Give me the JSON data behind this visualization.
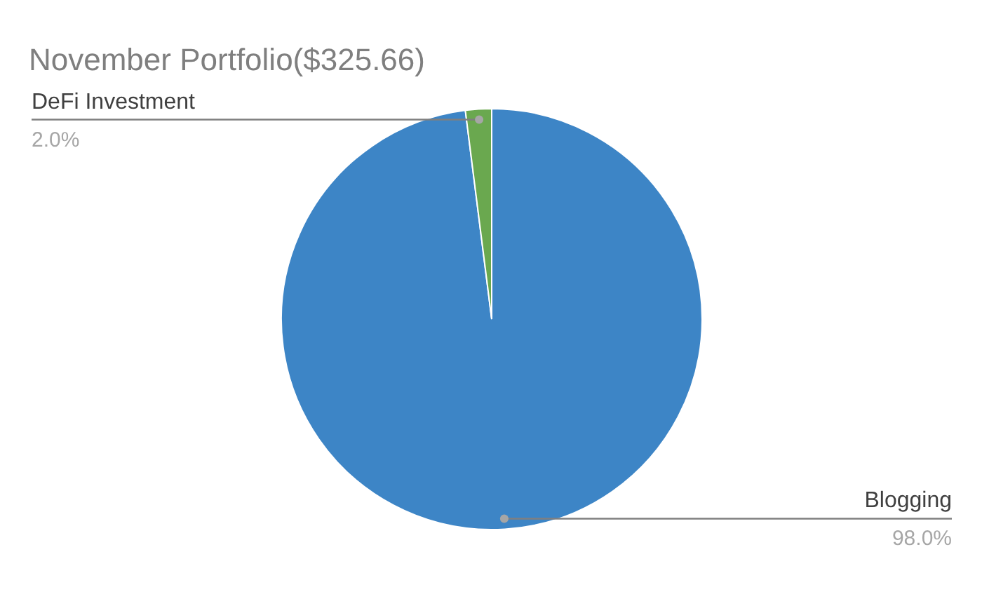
{
  "chart_data": {
    "type": "pie",
    "title": "November Portfolio($325.66)",
    "categories": [
      "Blogging",
      "DeFi Investment"
    ],
    "values": [
      98.0,
      2.0
    ],
    "colors": [
      "#3d85c6",
      "#6aa84f"
    ],
    "value_labels": [
      "98.0%",
      "2.0%"
    ]
  }
}
